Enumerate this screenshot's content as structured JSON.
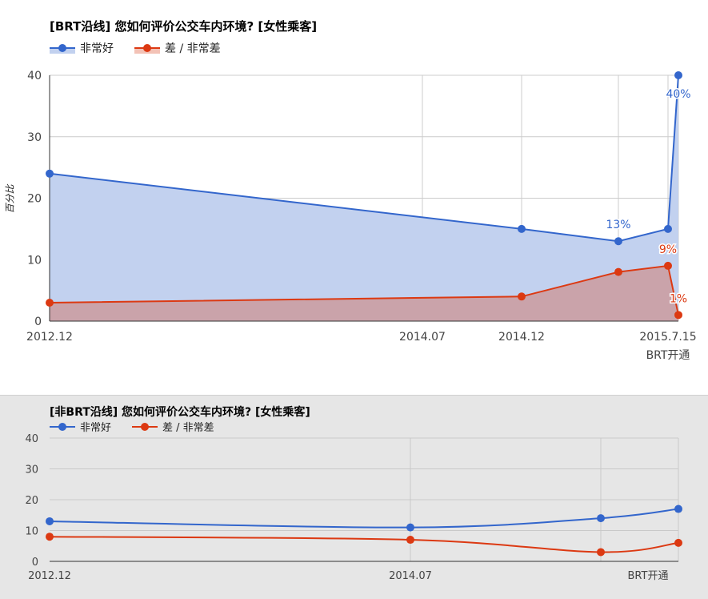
{
  "colors": {
    "good": "#3366cc",
    "bad": "#dc3912",
    "good_fill": "#c2d1ef",
    "bad_fill": "#caa3aa"
  },
  "chart_data": [
    {
      "type": "area",
      "title": "[BRT沿线] 您如何评价公交车内环境? [女性乘客]",
      "ylabel": "百分比",
      "ylim": [
        0,
        40
      ],
      "yticks": [
        0,
        10,
        20,
        30,
        40
      ],
      "legend_position": "top-left",
      "grid": true,
      "x": [
        "2012.12",
        "",
        "2014.07",
        "2014.12",
        "",
        "2015.7.15"
      ],
      "x_tick_labels": [
        "2012.12",
        "2014.07",
        "2014.12",
        "2015.7.15",
        "BRT开通"
      ],
      "series": [
        {
          "name": "非常好",
          "values": [
            24,
            null,
            15,
            13,
            15,
            40
          ]
        },
        {
          "name": "差 / 非常差",
          "values": [
            3,
            null,
            4,
            8,
            9,
            1
          ]
        }
      ],
      "annotations": [
        "13%",
        "40%",
        "9%",
        "1%"
      ]
    },
    {
      "type": "line",
      "title": "[非BRT沿线] 您如何评价公交车内环境? [女性乘客]",
      "ylim": [
        0,
        40
      ],
      "yticks": [
        0,
        10,
        20,
        30,
        40
      ],
      "legend_position": "top-left",
      "grid": true,
      "x_tick_labels": [
        "2012.12",
        "2014.07",
        "BRT开通"
      ],
      "series": [
        {
          "name": "非常好",
          "values": [
            13,
            11,
            14,
            17
          ]
        },
        {
          "name": "差 / 非常差",
          "values": [
            8,
            7,
            3,
            6
          ]
        }
      ]
    }
  ]
}
